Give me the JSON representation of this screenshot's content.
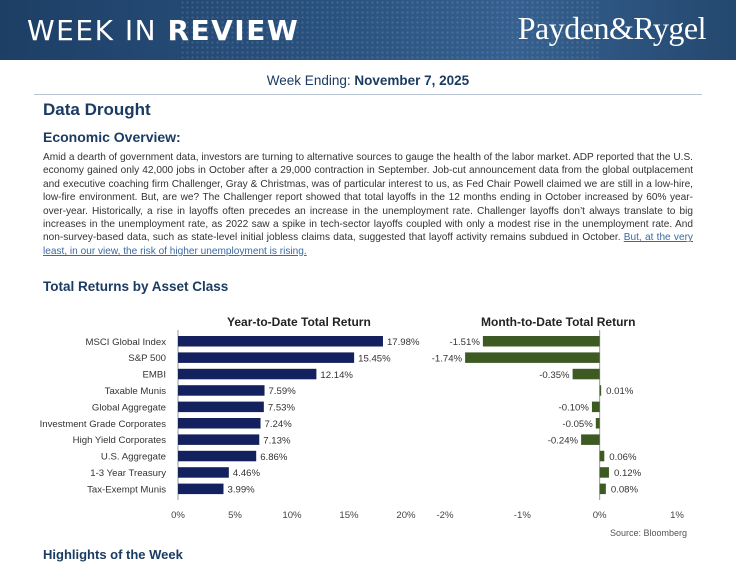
{
  "header": {
    "title_light": "WEEK IN ",
    "title_bold": "REVIEW",
    "brand": "Payden&Rygel"
  },
  "week": {
    "label": "Week Ending: ",
    "date": "November 7, 2025"
  },
  "headline": "Data Drought",
  "overview_heading": "Economic Overview:",
  "overview_text": "Amid a dearth of government data, investors are turning to alternative sources to gauge the health of the labor market. ADP reported that the U.S. economy gained only 42,000 jobs in October after a 29,000 contraction in September. Job-cut announcement data from the global outplacement and executive coaching firm Challenger, Gray & Christmas, was of particular interest to us, as Fed Chair Powell claimed we are still in a low-hire, low-fire environment. But, are we? The Challenger report showed that total layoffs in the 12 months ending in October increased by 60% year-over-year. Historically, a rise in layoffs often precedes an increase in the unemployment rate. Challenger layoffs don’t always translate to big increases in the unemployment rate, as 2022 saw a spike in tech-sector layoffs coupled with only a modest rise in the unemployment rate. And non-survey-based data, such as state-level initial jobless claims data, suggested that layoff activity remains subdued in October. ",
  "overview_link": "But, at the very least, in our view, the risk of higher unemployment is rising.",
  "returns_heading": "Total Returns by Asset Class",
  "chart_data": [
    {
      "type": "bar",
      "orientation": "horizontal",
      "title": "Year-to-Date Total Return",
      "categories": [
        "MSCI Global Index",
        "S&P 500",
        "EMBI",
        "Taxable Munis",
        "Global Aggregate",
        "Investment Grade Corporates",
        "High Yield Corporates",
        "U.S. Aggregate",
        "1-3 Year Treasury",
        "Tax-Exempt Munis"
      ],
      "values": [
        17.98,
        15.45,
        12.14,
        7.59,
        7.53,
        7.24,
        7.13,
        6.86,
        4.46,
        3.99
      ],
      "value_labels": [
        "17.98%",
        "15.45%",
        "12.14%",
        "7.59%",
        "7.53%",
        "7.24%",
        "7.13%",
        "6.86%",
        "4.46%",
        "3.99%"
      ],
      "xlim": [
        0,
        20
      ],
      "ticks": [
        0,
        5,
        10,
        15,
        20
      ],
      "tick_labels": [
        "0%",
        "5%",
        "10%",
        "15%",
        "20%"
      ],
      "color": "#13225e"
    },
    {
      "type": "bar",
      "orientation": "horizontal",
      "title": "Month-to-Date Total Return",
      "categories": [
        "MSCI Global Index",
        "S&P 500",
        "EMBI",
        "Taxable Munis",
        "Global Aggregate",
        "Investment Grade Corporates",
        "High Yield Corporates",
        "U.S. Aggregate",
        "1-3 Year Treasury",
        "Tax-Exempt Munis"
      ],
      "values": [
        -1.51,
        -1.74,
        -0.35,
        0.01,
        -0.1,
        -0.05,
        -0.24,
        0.06,
        0.12,
        0.08
      ],
      "value_labels": [
        "-1.51%",
        "-1.74%",
        "-0.35%",
        "0.01%",
        "-0.10%",
        "-0.05%",
        "-0.24%",
        "0.06%",
        "0.12%",
        "0.08%"
      ],
      "xlim": [
        -2,
        1
      ],
      "ticks": [
        -2,
        -1,
        0,
        1
      ],
      "tick_labels": [
        "-2%",
        "-1%",
        "0%",
        "1%"
      ],
      "color": "#3c5a22"
    }
  ],
  "source": "Source: Bloomberg",
  "next_heading": "Highlights of the Week"
}
